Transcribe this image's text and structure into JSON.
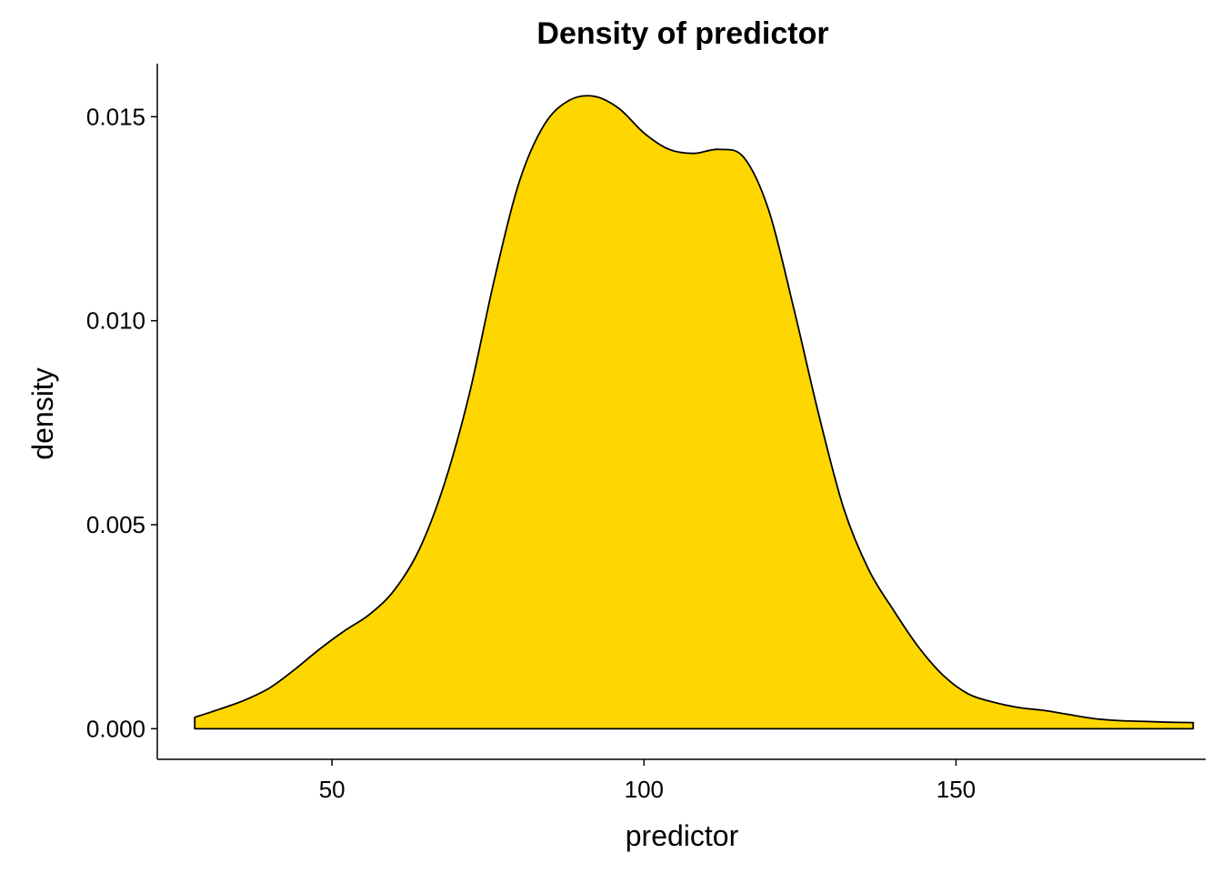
{
  "chart_data": {
    "type": "area",
    "title": "Density of predictor",
    "xlabel": "predictor",
    "ylabel": "density",
    "xlim": [
      22,
      190
    ],
    "ylim": [
      -0.00075,
      0.0163
    ],
    "x_ticks": [
      50,
      100,
      150
    ],
    "x_tick_labels": [
      "50",
      "100",
      "150"
    ],
    "y_ticks": [
      0.0,
      0.005,
      0.01,
      0.015
    ],
    "y_tick_labels": [
      "0.000",
      "0.005",
      "0.010",
      "0.015"
    ],
    "grid": false,
    "legend": "none",
    "fill_color": "#FFD700",
    "line_color": "#000000",
    "series": [
      {
        "x": [
          28,
          32,
          36,
          40,
          44,
          48,
          52,
          56,
          60,
          64,
          68,
          72,
          76,
          80,
          84,
          88,
          92,
          96,
          100,
          104,
          108,
          112,
          116,
          120,
          124,
          128,
          132,
          136,
          140,
          144,
          148,
          152,
          156,
          160,
          164,
          168,
          172,
          176,
          180,
          184,
          188
        ],
        "y": [
          0.00028,
          0.00048,
          0.0007,
          0.001,
          0.00145,
          0.00195,
          0.0024,
          0.0028,
          0.0034,
          0.0044,
          0.006,
          0.0082,
          0.011,
          0.0134,
          0.0148,
          0.0154,
          0.0155,
          0.0152,
          0.0146,
          0.0142,
          0.0141,
          0.0142,
          0.014,
          0.0127,
          0.0103,
          0.0077,
          0.0054,
          0.0039,
          0.0029,
          0.002,
          0.0013,
          0.00085,
          0.00065,
          0.00052,
          0.00045,
          0.00035,
          0.00025,
          0.0002,
          0.00018,
          0.00016,
          0.00015
        ]
      }
    ]
  }
}
